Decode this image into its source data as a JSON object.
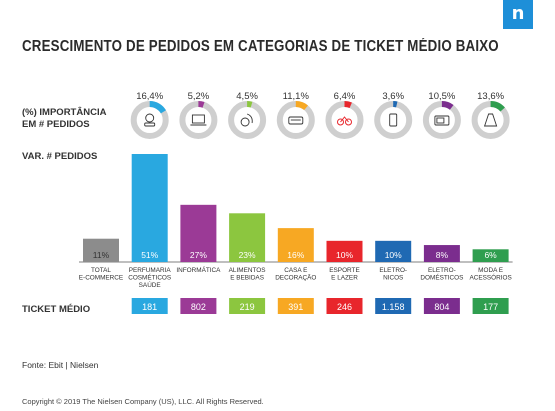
{
  "title": "CRESCIMENTO DE PEDIDOS EM CATEGORIAS DE TICKET MÉDIO BAIXO",
  "labels": {
    "importancia_line1": "(%) IMPORTÂNCIA",
    "importancia_line2": "EM # PEDIDOS",
    "var_pedidos": "VAR. # PEDIDOS",
    "ticket_medio": "TICKET MÉDIO"
  },
  "source": "Fonte: Ebit | Nielsen",
  "copyright": "Copyright © 2019 The Nielsen Company (US), LLC. All Rights Reserved.",
  "chart_data": {
    "type": "bar",
    "title": "CRESCIMENTO DE PEDIDOS EM CATEGORIAS DE TICKET MÉDIO BAIXO",
    "categories": [
      [
        "TOTAL",
        "E-COMMERCE"
      ],
      [
        "PERFUMARIA",
        "COSMÉTICOS",
        "SAÚDE"
      ],
      [
        "INFORMÁTICA"
      ],
      [
        "ALIMENTOS",
        "E BEBIDAS"
      ],
      [
        "CASA E",
        "DECORAÇÃO"
      ],
      [
        "ESPORTE",
        "E LAZER"
      ],
      [
        "ELETRO-",
        "NICOS"
      ],
      [
        "ELETRO-",
        "DOMÉSTICOS"
      ],
      [
        "MODA E",
        "ACESSÓRIOS"
      ]
    ],
    "var_pedidos": [
      11,
      51,
      27,
      23,
      16,
      10,
      10,
      8,
      6
    ],
    "var_labels": [
      "11%",
      "51%",
      "27%",
      "23%",
      "16%",
      "10%",
      "10%",
      "8%",
      "6%"
    ],
    "importancia": [
      null,
      16.4,
      5.2,
      4.5,
      11.1,
      6.4,
      3.6,
      10.5,
      13.6
    ],
    "importancia_labels": [
      "",
      "16,4%",
      "5,2%",
      "4,5%",
      "11,1%",
      "6,4%",
      "3,6%",
      "10,5%",
      "13,6%"
    ],
    "ticket_medio": [
      "",
      "181",
      "802",
      "219",
      "391",
      "246",
      "1.158",
      "804",
      "177"
    ],
    "icons": [
      "",
      "cosmetics-icon",
      "laptop-icon",
      "food-icon",
      "sofa-icon",
      "bicycle-icon",
      "smartphone-icon",
      "microwave-icon",
      "dress-icon"
    ],
    "colors": [
      "#8c8c8c",
      "#29a8e0",
      "#9b3a96",
      "#8cc63f",
      "#f7a823",
      "#e8262c",
      "#1f69b3",
      "#7b2d8e",
      "#2f9e4f"
    ],
    "ylim": [
      0,
      51
    ]
  }
}
